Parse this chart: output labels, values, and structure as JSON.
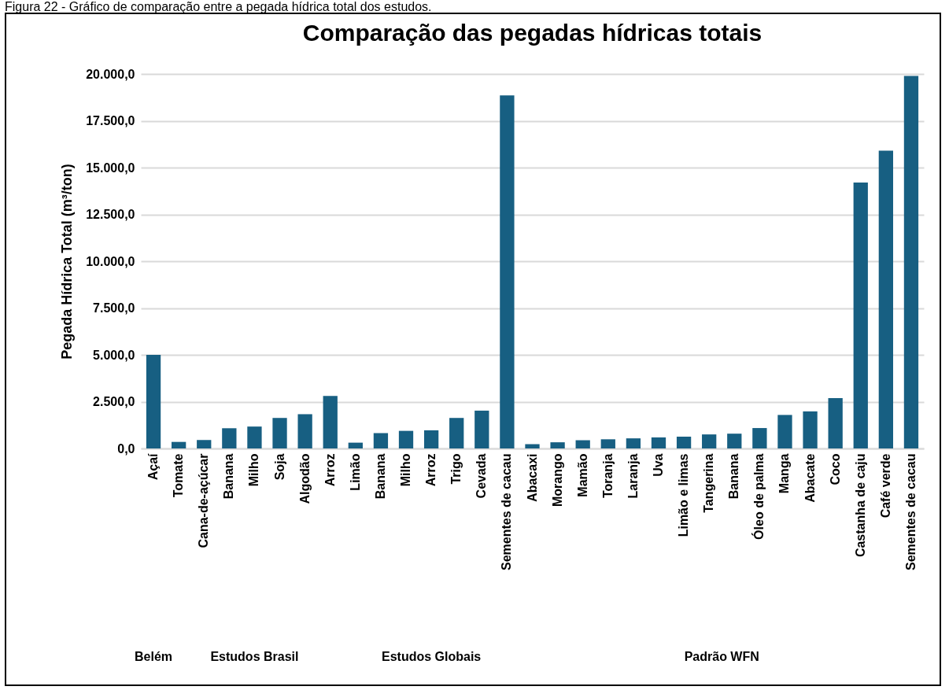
{
  "chart_data": {
    "type": "bar",
    "title": "Comparação das pegadas hídricas totais",
    "ylabel": "Pegada Hídrica Total (m³/ton)",
    "categories": [
      "Açaí",
      "Tomate",
      "Cana-de-açúcar",
      "Banana",
      "Milho",
      "Soja",
      "Algodão",
      "Arroz",
      "Limão",
      "Banana",
      "Milho",
      "Arroz",
      "Trigo",
      "Cevada",
      "Sementes de cacau",
      "Abacaxi",
      "Morango",
      "Mamão",
      "Toranja",
      "Laranja",
      "Uva",
      "Limão e limas",
      "Tangerina",
      "Banana",
      "Óleo de palma",
      "Manga",
      "Abacate",
      "Coco",
      "Castanha de caju",
      "Café verde",
      "Sementes de cacau"
    ],
    "values": [
      5000,
      350,
      450,
      1080,
      1170,
      1630,
      1830,
      2800,
      310,
      820,
      940,
      970,
      1630,
      2020,
      18850,
      230,
      330,
      440,
      490,
      540,
      590,
      630,
      750,
      790,
      1090,
      1790,
      1980,
      2690,
      14200,
      15900,
      19900
    ],
    "color": "#175f82",
    "ylim": [
      0,
      20000
    ],
    "yticks": [
      {
        "value": 0,
        "label": "0,0"
      },
      {
        "value": 2500,
        "label": "2.500,0"
      },
      {
        "value": 5000,
        "label": "5.000,0"
      },
      {
        "value": 7500,
        "label": "7.500,0"
      },
      {
        "value": 10000,
        "label": "10.000,0"
      },
      {
        "value": 12500,
        "label": "12.500,0"
      },
      {
        "value": 15000,
        "label": "15.000,0"
      },
      {
        "value": 17500,
        "label": "17.500,0"
      },
      {
        "value": 20000,
        "label": "20.000,0"
      }
    ],
    "grid": "y",
    "annotations": [
      "Figura 22 - Gráfico de comparação entre a pegada hídrica total dos estudos.",
      "Belém",
      "Estudos Brasil",
      "Estudos Globais",
      "Padrão WFN"
    ]
  }
}
